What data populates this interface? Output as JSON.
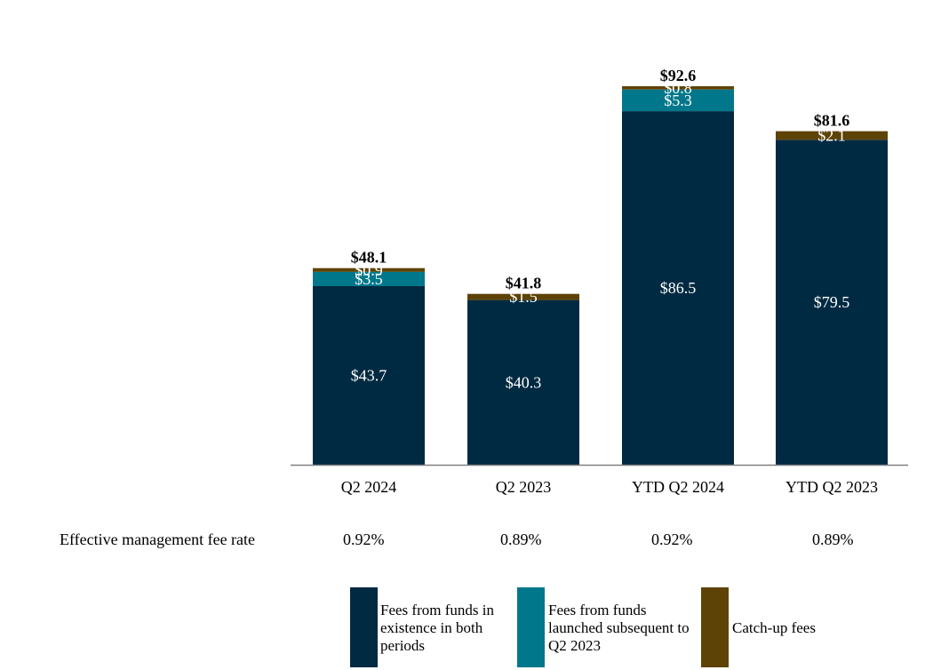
{
  "chart_data": {
    "type": "bar",
    "stacked": true,
    "categories": [
      "Q2 2024",
      "Q2 2023",
      "YTD Q2 2024",
      "YTD Q2 2023"
    ],
    "series": [
      {
        "name": "Fees from funds in existence in both periods",
        "color": "#002a42",
        "values": [
          43.7,
          40.3,
          86.5,
          79.5
        ],
        "labels": [
          "$43.7",
          "$40.3",
          "$86.5",
          "$79.5"
        ]
      },
      {
        "name": "Fees from funds launched subsequent to Q2 2023",
        "color": "#00778b",
        "values": [
          3.5,
          0,
          5.3,
          0
        ],
        "labels": [
          "$3.5",
          "",
          "$5.3",
          ""
        ]
      },
      {
        "name": "Catch-up fees",
        "color": "#5e4306",
        "values": [
          0.9,
          1.5,
          0.8,
          2.1
        ],
        "labels": [
          "$0.9",
          "$1.5",
          "$0.8",
          "$2.1"
        ]
      }
    ],
    "totals": [
      48.1,
      41.8,
      92.6,
      81.6
    ],
    "total_labels": [
      "$48.1",
      "$41.8",
      "$92.6",
      "$81.6"
    ],
    "ylim": [
      0,
      100
    ],
    "title": "",
    "xlabel": "",
    "ylabel": "",
    "grid": false
  },
  "fee_rate": {
    "label": "Effective management fee rate",
    "values": [
      "0.92%",
      "0.89%",
      "0.92%",
      "0.89%"
    ]
  },
  "legend": {
    "items": [
      {
        "text": "Fees from funds in existence in both periods",
        "color": "#002a42"
      },
      {
        "text": "Fees from funds launched subsequent to Q2 2023",
        "color": "#00778b"
      },
      {
        "text": "Catch-up fees",
        "color": "#5e4306"
      }
    ]
  }
}
